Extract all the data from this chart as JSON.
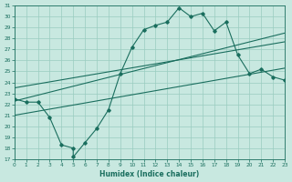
{
  "xlabel": "Humidex (Indice chaleur)",
  "bg_color": "#c8e8e0",
  "grid_color": "#99ccc0",
  "line_color": "#1a6e5e",
  "xlim": [
    0,
    23
  ],
  "ylim": [
    17,
    31
  ],
  "xticks": [
    0,
    1,
    2,
    3,
    4,
    5,
    6,
    7,
    8,
    9,
    10,
    11,
    12,
    13,
    14,
    15,
    16,
    17,
    18,
    19,
    20,
    21,
    22,
    23
  ],
  "yticks": [
    17,
    18,
    19,
    20,
    21,
    22,
    23,
    24,
    25,
    26,
    27,
    28,
    29,
    30,
    31
  ],
  "main_x": [
    0,
    1,
    2,
    3,
    4,
    5,
    5,
    6,
    7,
    8,
    9,
    10,
    11,
    12,
    13,
    14,
    15,
    16,
    17,
    18,
    19,
    20,
    21,
    22,
    23
  ],
  "main_y": [
    22.5,
    22.2,
    22.2,
    20.8,
    18.3,
    18.0,
    17.2,
    18.5,
    19.8,
    21.5,
    24.8,
    27.2,
    28.8,
    29.2,
    29.5,
    30.8,
    30.0,
    30.3,
    28.7,
    29.5,
    26.5,
    24.8,
    25.2,
    24.5,
    24.2
  ],
  "line1_x": [
    0,
    23
  ],
  "line1_y": [
    22.3,
    28.5
  ],
  "line2_x": [
    0,
    23
  ],
  "line2_y": [
    21.0,
    25.3
  ],
  "line3_x": [
    0,
    23
  ],
  "line3_y": [
    23.5,
    27.7
  ]
}
